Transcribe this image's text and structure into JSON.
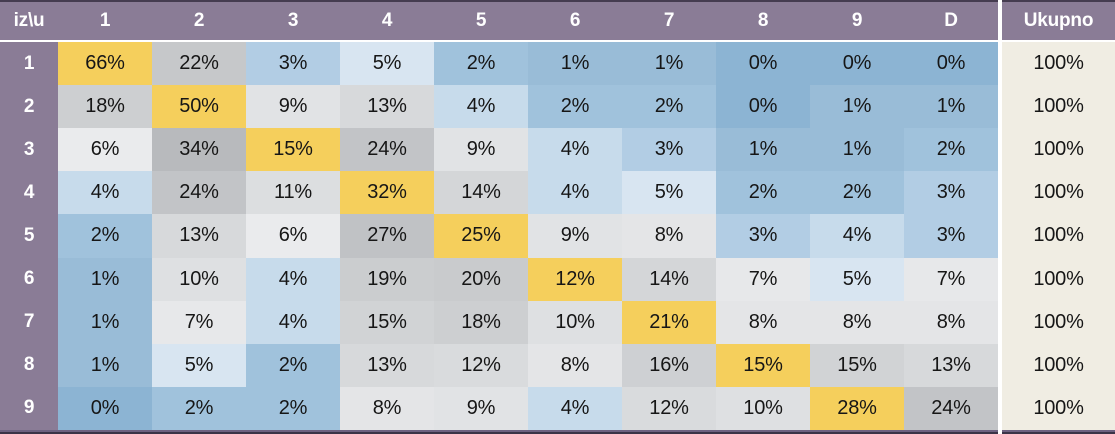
{
  "colors": {
    "header_bg": "#8a7c96",
    "header_text": "#ffffff",
    "cell_text": "#161616",
    "total_bg": "#f0ede3",
    "gap_white": "#ffffff",
    "top_border": "#453c50",
    "bottom_border_upper": "#6e6180",
    "bottom_border_lower": "#3b3347",
    "diagonal_highlight": "#f5cf5c"
  },
  "matrix": {
    "corner_label": "iz\\u",
    "col_headers": [
      "1",
      "2",
      "3",
      "4",
      "5",
      "6",
      "7",
      "8",
      "9",
      "D"
    ],
    "total_header": "Ukupno",
    "row_headers": [
      "1",
      "2",
      "3",
      "4",
      "5",
      "6",
      "7",
      "8",
      "9"
    ],
    "row_total_text": "100%",
    "cell_bg": [
      [
        "#f5cf5c",
        "#c6c8ca",
        "#b2cde4",
        "#d8e5f1",
        "#a0c2dc",
        "#99bcd7",
        "#99bcd7",
        "#8cb4d3",
        "#8cb4d3",
        "#8cb4d3"
      ],
      [
        "#cdcfd1",
        "#f5cf5c",
        "#e1e3e5",
        "#d7d9db",
        "#c7dbeb",
        "#a0c2dc",
        "#a0c2dc",
        "#8cb4d3",
        "#99bcd7",
        "#99bcd7"
      ],
      [
        "#eaebed",
        "#b8babd",
        "#f5cf5c",
        "#c2c4c7",
        "#e1e3e5",
        "#c7dbeb",
        "#b2cde4",
        "#99bcd7",
        "#99bcd7",
        "#a0c2dc"
      ],
      [
        "#c7dbeb",
        "#c2c4c7",
        "#dcdee0",
        "#f5cf5c",
        "#d4d6d8",
        "#c7dbeb",
        "#d8e5f1",
        "#a0c2dc",
        "#a0c2dc",
        "#b2cde4"
      ],
      [
        "#a0c2dc",
        "#d7d9db",
        "#eaebed",
        "#c0c2c5",
        "#f5cf5c",
        "#e1e3e5",
        "#e4e5e7",
        "#b2cde4",
        "#c7dbeb",
        "#b2cde4"
      ],
      [
        "#99bcd7",
        "#dee0e2",
        "#c7dbeb",
        "#cbcdcf",
        "#c9cbcd",
        "#f5cf5c",
        "#d4d6d8",
        "#e7e8ea",
        "#d8e5f1",
        "#e7e8ea"
      ],
      [
        "#99bcd7",
        "#e7e8ea",
        "#c7dbeb",
        "#d1d3d5",
        "#cdcfd1",
        "#dee0e2",
        "#f5cf5c",
        "#e4e5e7",
        "#e4e5e7",
        "#e4e5e7"
      ],
      [
        "#99bcd7",
        "#d8e5f1",
        "#a0c2dc",
        "#d7d9db",
        "#d9dbdd",
        "#e4e5e7",
        "#ced0d3",
        "#f5cf5c",
        "#d1d3d5",
        "#d7d9db"
      ],
      [
        "#8cb4d3",
        "#a0c2dc",
        "#a0c2dc",
        "#e4e5e7",
        "#e1e3e5",
        "#c7dbeb",
        "#d9dbdd",
        "#dee0e2",
        "#f5cf5c",
        "#c2c4c7"
      ]
    ]
  },
  "chart_data": {
    "type": "heatmap",
    "title": "",
    "corner_label": "iz\\u",
    "columns": [
      "1",
      "2",
      "3",
      "4",
      "5",
      "6",
      "7",
      "8",
      "9",
      "D"
    ],
    "rows": [
      "1",
      "2",
      "3",
      "4",
      "5",
      "6",
      "7",
      "8",
      "9"
    ],
    "values_percent": [
      [
        66,
        22,
        3,
        5,
        2,
        1,
        1,
        0,
        0,
        0
      ],
      [
        18,
        50,
        9,
        13,
        4,
        2,
        2,
        0,
        1,
        1
      ],
      [
        6,
        34,
        15,
        24,
        9,
        4,
        3,
        1,
        1,
        2
      ],
      [
        4,
        24,
        11,
        32,
        14,
        4,
        5,
        2,
        2,
        3
      ],
      [
        2,
        13,
        6,
        27,
        25,
        9,
        8,
        3,
        4,
        3
      ],
      [
        1,
        10,
        4,
        19,
        20,
        12,
        14,
        7,
        5,
        7
      ],
      [
        1,
        7,
        4,
        15,
        18,
        10,
        21,
        8,
        8,
        8
      ],
      [
        1,
        5,
        2,
        13,
        12,
        8,
        16,
        15,
        15,
        13
      ],
      [
        0,
        2,
        2,
        8,
        9,
        4,
        12,
        10,
        28,
        24
      ]
    ],
    "row_totals_percent": [
      100,
      100,
      100,
      100,
      100,
      100,
      100,
      100,
      100
    ],
    "total_label": "Ukupno",
    "legend": "none",
    "color_coding": {
      "diagonal": "yellow highlight",
      "low_values": "blue (darker = lower)",
      "high_values": "gray (darker = higher)"
    }
  }
}
